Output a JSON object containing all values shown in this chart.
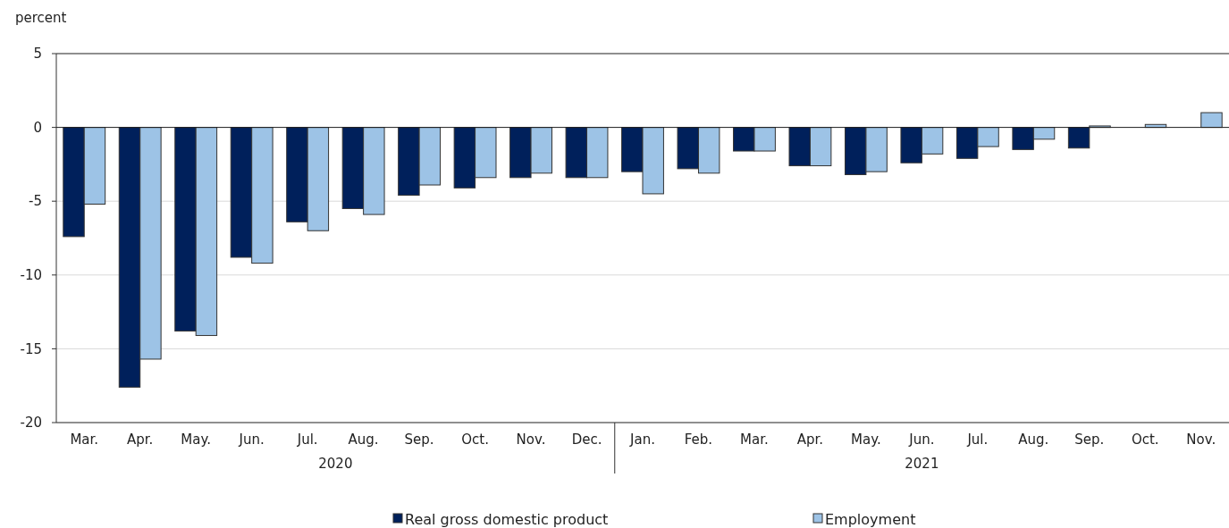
{
  "chart_data": {
    "type": "bar",
    "ylabel": "percent",
    "categories": [
      "Mar.",
      "Apr.",
      "May.",
      "Jun.",
      "Jul.",
      "Aug.",
      "Sep.",
      "Oct.",
      "Nov.",
      "Dec.",
      "Jan.",
      "Feb.",
      "Mar.",
      "Apr.",
      "May.",
      "Jun.",
      "Jul.",
      "Aug.",
      "Sep.",
      "Oct.",
      "Nov."
    ],
    "series": [
      {
        "name": "Real gross domestic product",
        "color": "#00205b",
        "values": [
          -7.4,
          -17.6,
          -13.8,
          -8.8,
          -6.4,
          -5.5,
          -4.6,
          -4.1,
          -3.4,
          -3.4,
          -3.0,
          -2.8,
          -1.6,
          -2.6,
          -3.2,
          -2.4,
          -2.1,
          -1.5,
          -1.4,
          null,
          null
        ]
      },
      {
        "name": "Employment",
        "color": "#9dc3e6",
        "values": [
          -5.2,
          -15.7,
          -14.1,
          -9.2,
          -7.0,
          -5.9,
          -3.9,
          -3.4,
          -3.1,
          -3.4,
          -4.5,
          -3.1,
          -1.6,
          -2.6,
          -3.0,
          -1.8,
          -1.3,
          -0.8,
          0.1,
          0.2,
          1.0
        ]
      }
    ],
    "annotations": [
      "2020",
      "2021"
    ],
    "ylim": [
      -20,
      5
    ],
    "yticks": [
      -20,
      -15,
      -10,
      -5,
      0,
      5
    ],
    "grid": "y",
    "legend": "bottom"
  }
}
